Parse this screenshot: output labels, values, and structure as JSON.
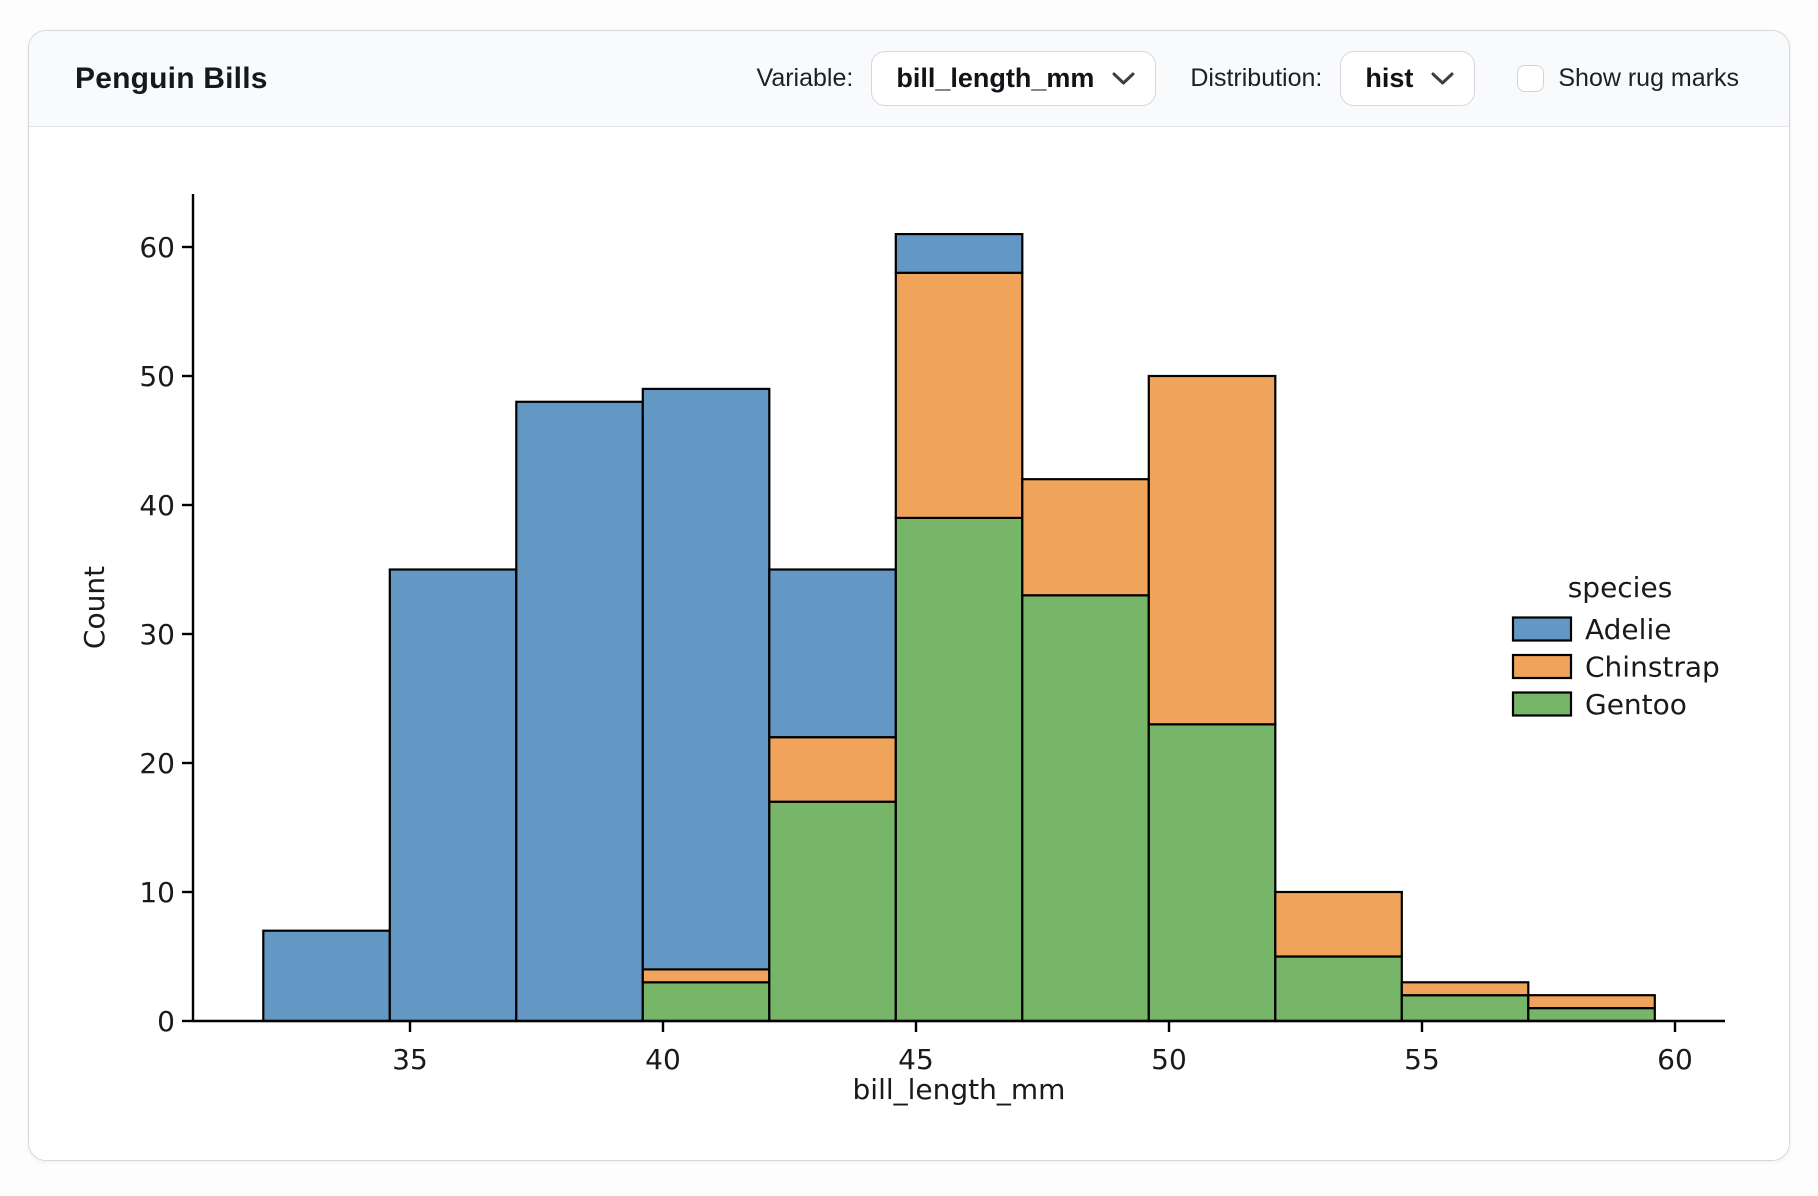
{
  "header": {
    "title": "Penguin Bills",
    "variable_label": "Variable:",
    "variable_value": "bill_length_mm",
    "distribution_label": "Distribution:",
    "distribution_value": "hist",
    "rug_label": "Show rug marks",
    "rug_checked": false
  },
  "chart_data": {
    "type": "bar",
    "subtype": "stacked-histogram",
    "title": "",
    "xlabel": "bill_length_mm",
    "ylabel": "Count",
    "bin_edges": [
      32.1,
      34.6,
      37.1,
      39.6,
      42.1,
      44.6,
      47.1,
      49.6,
      52.1,
      54.6,
      57.1,
      59.6
    ],
    "x_ticks": [
      35,
      40,
      45,
      50,
      55,
      60
    ],
    "y_ticks": [
      0,
      10,
      20,
      30,
      40,
      50,
      60
    ],
    "xlim": [
      30.7,
      61.0
    ],
    "ylim": [
      0,
      64.05
    ],
    "grid": false,
    "series": [
      {
        "name": "Adelie",
        "color": "#6398c5",
        "values": [
          7,
          35,
          48,
          45,
          13,
          3,
          0,
          0,
          0,
          0,
          0
        ]
      },
      {
        "name": "Chinstrap",
        "color": "#f0a35a",
        "values": [
          0,
          0,
          0,
          1,
          5,
          19,
          9,
          27,
          5,
          1,
          1
        ]
      },
      {
        "name": "Gentoo",
        "color": "#77b569",
        "values": [
          0,
          0,
          0,
          3,
          17,
          39,
          33,
          23,
          5,
          2,
          1
        ]
      }
    ],
    "stack_order_bottom_to_top": [
      "Gentoo",
      "Chinstrap",
      "Adelie"
    ],
    "bin_totals": [
      7,
      35,
      48,
      49,
      35,
      61,
      42,
      50,
      10,
      3,
      2
    ],
    "bar_edge_color": "#000000",
    "legend": {
      "title": "species",
      "position": "right-inside",
      "entries": [
        "Adelie",
        "Chinstrap",
        "Gentoo"
      ]
    }
  }
}
